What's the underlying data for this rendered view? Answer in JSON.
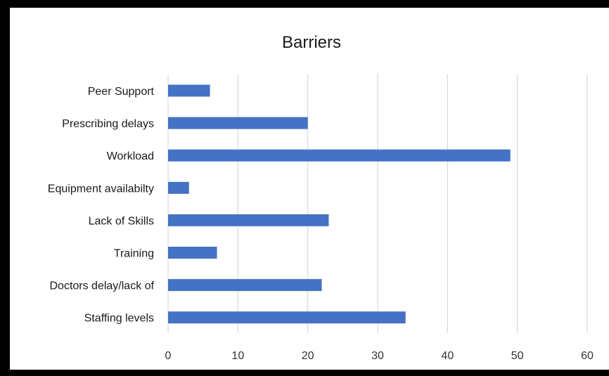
{
  "chart_data": {
    "type": "bar",
    "orientation": "horizontal",
    "title": "Barriers",
    "xlabel": "",
    "ylabel": "",
    "categories": [
      "Peer Support",
      "Prescribing delays",
      "Workload",
      "Equipment availabilty",
      "Lack of Skills",
      "Training",
      "Doctors delay/lack of",
      "Staffing levels"
    ],
    "values": [
      6,
      20,
      49,
      3,
      23,
      7,
      22,
      34
    ],
    "xlim": [
      0,
      60
    ],
    "xticks": [
      0,
      10,
      20,
      30,
      40,
      50,
      60
    ],
    "grid": true,
    "legend": "none",
    "bar_color": "#4472c4",
    "grid_color": "#d0d0d0"
  }
}
